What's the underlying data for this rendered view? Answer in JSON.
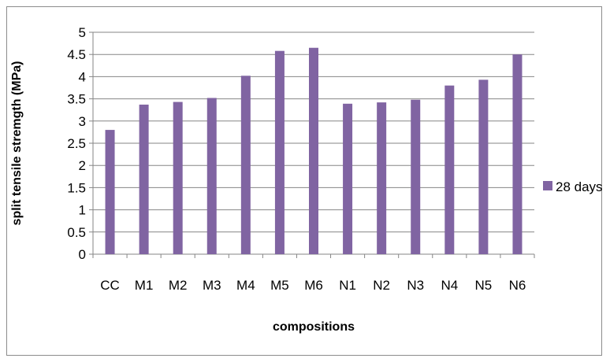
{
  "chart_data": {
    "type": "bar",
    "title": "",
    "xlabel": "compositions",
    "ylabel": "split tensile stremgth (MPa)",
    "categories": [
      "CC",
      "M1",
      "M2",
      "M3",
      "M4",
      "M5",
      "M6",
      "N1",
      "N2",
      "N3",
      "N4",
      "N5",
      "N6"
    ],
    "series": [
      {
        "name": "28 days",
        "color": "#8064a2",
        "values": [
          2.8,
          3.37,
          3.43,
          3.52,
          4.02,
          4.58,
          4.65,
          3.39,
          3.42,
          3.48,
          3.8,
          3.93,
          4.5
        ]
      }
    ],
    "ylim": [
      0,
      5
    ],
    "yticks": [
      "0",
      "0.5",
      "1",
      "1.5",
      "2",
      "2.5",
      "3",
      "3.5",
      "4",
      "4.5",
      "5"
    ],
    "grid": true,
    "legend": "right"
  }
}
